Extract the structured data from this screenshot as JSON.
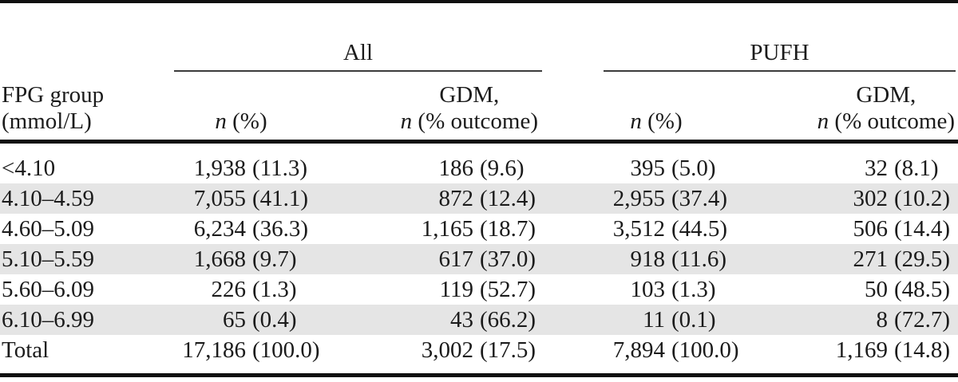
{
  "table": {
    "groups": {
      "all": "All",
      "pufh": "PUFH"
    },
    "columns": {
      "fpg_line1": "FPG group",
      "fpg_line2": "(mmol/L)",
      "n_italic": "n",
      "n_rest": "(%)",
      "gdm_line1": "GDM,",
      "gdm_n_italic": "n",
      "gdm_rest": "(% outcome)"
    },
    "rows": [
      {
        "group": "<4.10",
        "all_n": "1,938",
        "all_pct": "(11.3)",
        "all_gdm_n": "186",
        "all_gdm_pct": "(9.6)",
        "pufh_n": "395",
        "pufh_pct": "(5.0)",
        "pufh_gdm_n": "32",
        "pufh_gdm_pct": "(8.1)"
      },
      {
        "group": "4.10–4.59",
        "all_n": "7,055",
        "all_pct": "(41.1)",
        "all_gdm_n": "872",
        "all_gdm_pct": "(12.4)",
        "pufh_n": "2,955",
        "pufh_pct": "(37.4)",
        "pufh_gdm_n": "302",
        "pufh_gdm_pct": "(10.2)"
      },
      {
        "group": "4.60–5.09",
        "all_n": "6,234",
        "all_pct": "(36.3)",
        "all_gdm_n": "1,165",
        "all_gdm_pct": "(18.7)",
        "pufh_n": "3,512",
        "pufh_pct": "(44.5)",
        "pufh_gdm_n": "506",
        "pufh_gdm_pct": "(14.4)"
      },
      {
        "group": "5.10–5.59",
        "all_n": "1,668",
        "all_pct": "(9.7)",
        "all_gdm_n": "617",
        "all_gdm_pct": "(37.0)",
        "pufh_n": "918",
        "pufh_pct": "(11.6)",
        "pufh_gdm_n": "271",
        "pufh_gdm_pct": "(29.5)"
      },
      {
        "group": "5.60–6.09",
        "all_n": "226",
        "all_pct": "(1.3)",
        "all_gdm_n": "119",
        "all_gdm_pct": "(52.7)",
        "pufh_n": "103",
        "pufh_pct": "(1.3)",
        "pufh_gdm_n": "50",
        "pufh_gdm_pct": "(48.5)"
      },
      {
        "group": "6.10–6.99",
        "all_n": "65",
        "all_pct": "(0.4)",
        "all_gdm_n": "43",
        "all_gdm_pct": "(66.2)",
        "pufh_n": "11",
        "pufh_pct": "(0.1)",
        "pufh_gdm_n": "8",
        "pufh_gdm_pct": "(72.7)"
      },
      {
        "group": "Total",
        "all_n": "17,186",
        "all_pct": "(100.0)",
        "all_gdm_n": "3,002",
        "all_gdm_pct": "(17.5)",
        "pufh_n": "7,894",
        "pufh_pct": "(100.0)",
        "pufh_gdm_n": "1,169",
        "pufh_gdm_pct": "(14.8)"
      }
    ]
  },
  "colors": {
    "zebra_row": "#e5e5e5",
    "rule_thick": "#101010",
    "rule_thin": "#3b3b3b",
    "text": "#1b1b1b"
  }
}
